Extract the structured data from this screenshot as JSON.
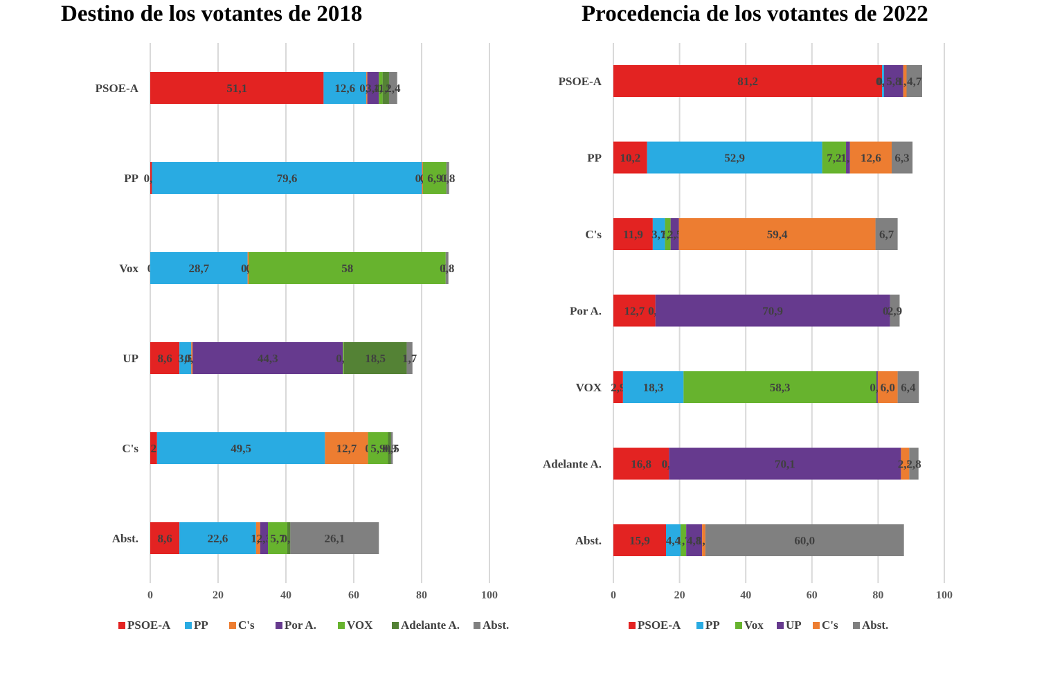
{
  "chart_data": [
    {
      "type": "bar",
      "orientation": "horizontal",
      "stacked": true,
      "title": "Destino de los votantes de 2018",
      "xlabel": "",
      "ylabel": "",
      "xlim": [
        0,
        100
      ],
      "xticks": [
        0,
        20,
        40,
        60,
        80,
        100
      ],
      "grid": true,
      "legend_position": "bottom",
      "categories": [
        "PSOE-A",
        "PP",
        "Vox",
        "UP",
        "C's",
        "Abst."
      ],
      "series": [
        {
          "name": "PSOE-A",
          "color": "#E32322",
          "values": [
            51.1,
            0.5,
            0,
            8.6,
            2,
            8.6
          ],
          "labels": [
            "51,1",
            "0,5",
            "0",
            "8,6",
            "2",
            "8,6"
          ]
        },
        {
          "name": "PP",
          "color": "#29ABE2",
          "values": [
            12.6,
            79.6,
            28.7,
            3.5,
            49.5,
            22.6
          ],
          "labels": [
            "12,6",
            "79,6",
            "28,7",
            "3,5",
            "49,5",
            "22,6"
          ]
        },
        {
          "name": "C's",
          "color": "#ED7D31",
          "values": [
            0.3,
            0.3,
            0.4,
            0.4,
            12.7,
            1.2
          ],
          "labels": [
            "0,3",
            "0,3",
            "0,4",
            "0,4",
            "12,7",
            "1,2"
          ]
        },
        {
          "name": "Por A.",
          "color": "#663A8E",
          "values": [
            3.4,
            0,
            0,
            44.3,
            0,
            2.3
          ],
          "labels": [
            "3,4",
            "0",
            "0",
            "44,3",
            "0",
            "2,3"
          ]
        },
        {
          "name": "VOX",
          "color": "#67B32E",
          "values": [
            1.1,
            6.9,
            58,
            0.3,
            5.9,
            5.7
          ],
          "labels": [
            "1,1",
            "6,9",
            "58",
            "0,3",
            "5,9",
            "5,7"
          ]
        },
        {
          "name": "Adelante A.",
          "color": "#548235",
          "values": [
            1.9,
            0,
            0,
            18.5,
            0.9,
            0.9
          ],
          "labels": [
            "1,9",
            "0",
            "0",
            "18,5",
            "0,9",
            "0,9"
          ]
        },
        {
          "name": "Abst.",
          "color": "#808080",
          "values": [
            2.4,
            0.8,
            0.8,
            1.7,
            0.5,
            26.1
          ],
          "labels": [
            "2,4",
            "0,8",
            "0,8",
            "1,7",
            "0,5",
            "26,1"
          ]
        }
      ]
    },
    {
      "type": "bar",
      "orientation": "horizontal",
      "stacked": true,
      "title": "Procedencia de los votantes de 2022",
      "xlabel": "",
      "ylabel": "",
      "xlim": [
        0,
        100
      ],
      "xticks": [
        0,
        20,
        40,
        60,
        80,
        100
      ],
      "grid": true,
      "legend_position": "bottom",
      "categories": [
        "PSOE-A",
        "PP",
        "C's",
        "Por A.",
        "VOX",
        "Adelante A.",
        "Abst."
      ],
      "series": [
        {
          "name": "PSOE-A",
          "color": "#E32322",
          "values": [
            81.2,
            10.2,
            11.9,
            12.7,
            2.9,
            16.8,
            15.9
          ],
          "labels": [
            "81,2",
            "10,2",
            "11,9",
            "12,7",
            "2,9",
            "16,8",
            "15,9"
          ]
        },
        {
          "name": "PP",
          "color": "#29ABE2",
          "values": [
            0.6,
            52.9,
            3.7,
            0.0,
            18.3,
            0.0,
            4.4
          ],
          "labels": [
            "0,6",
            "52,9",
            "3,7",
            "0,0",
            "18,3",
            "0,0",
            "4,4"
          ]
        },
        {
          "name": "Vox",
          "color": "#67B32E",
          "values": [
            0.0,
            7.2,
            1.7,
            0.0,
            58.3,
            0.0,
            1.7
          ],
          "labels": [
            "0,0",
            "7,2",
            "1,7",
            "0,0",
            "58,3",
            "0,0",
            "1,7"
          ]
        },
        {
          "name": "UP",
          "color": "#663A8E",
          "values": [
            5.8,
            1.2,
            2.5,
            70.9,
            0.4,
            70.1,
            4.8
          ],
          "labels": [
            "5,8",
            "1,2",
            "2,5",
            "70,9",
            "0,4",
            "70,1",
            "4,8"
          ]
        },
        {
          "name": "C's",
          "color": "#ED7D31",
          "values": [
            1.0,
            12.6,
            59.4,
            0.0,
            6.0,
            2.5,
            1.0
          ],
          "labels": [
            "1,0",
            "12,6",
            "59,4",
            "0,0",
            "6,0",
            "2,5",
            "1,0"
          ]
        },
        {
          "name": "Abst.",
          "color": "#808080",
          "values": [
            4.7,
            6.3,
            6.7,
            2.9,
            6.4,
            2.8,
            60.0
          ],
          "labels": [
            "4,7",
            "6,3",
            "6,7",
            "2,9",
            "6,4",
            "2,8",
            "60,0"
          ]
        }
      ]
    }
  ]
}
